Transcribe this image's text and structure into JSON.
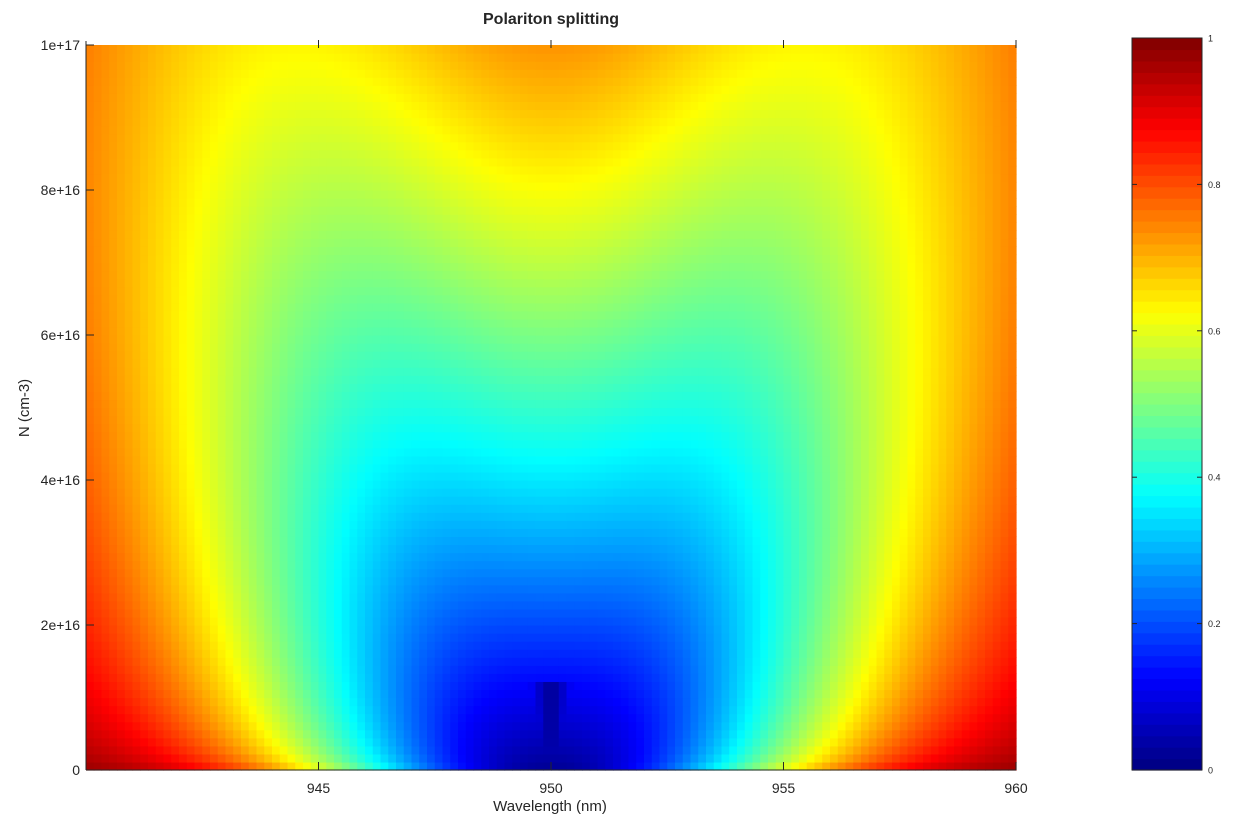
{
  "chart_data": {
    "type": "heatmap",
    "title": "Polariton splitting",
    "xlabel": "Wavelength (nm)",
    "ylabel": "N (cm-3)",
    "xlim": [
      940,
      960
    ],
    "ylim": [
      0,
      1e+17
    ],
    "x_ticks": [
      {
        "value": 945,
        "label": "945"
      },
      {
        "value": 950,
        "label": "950"
      },
      {
        "value": 955,
        "label": "955"
      },
      {
        "value": 960,
        "label": "960"
      }
    ],
    "y_ticks": [
      {
        "value": 0,
        "label": "0"
      },
      {
        "value": 2e+16,
        "label": "2e+16"
      },
      {
        "value": 4e+16,
        "label": "4e+16"
      },
      {
        "value": 6e+16,
        "label": "6e+16"
      },
      {
        "value": 8e+16,
        "label": "8e+16"
      },
      {
        "value": 1e+17,
        "label": "1e+17"
      }
    ],
    "colormap": "jet",
    "colorbar": {
      "range": [
        0,
        1
      ],
      "ticks": [
        {
          "value": 0,
          "label": "0"
        },
        {
          "value": 0.2,
          "label": "0.2"
        },
        {
          "value": 0.4,
          "label": "0.4"
        },
        {
          "value": 0.6,
          "label": "0.6"
        },
        {
          "value": 0.8,
          "label": "0.8"
        },
        {
          "value": 1,
          "label": "1"
        }
      ]
    },
    "model": {
      "center_wavelength": 950,
      "grid_nx": 120,
      "grid_ny": 90,
      "min_value_at_center": 0.02,
      "splitting_min_nm": 0.8,
      "splitting_max_nm": 6.6,
      "linewidth_nm": 4.2,
      "dip_min_strength": 0.98,
      "dip_max_strength": 0.6
    }
  }
}
